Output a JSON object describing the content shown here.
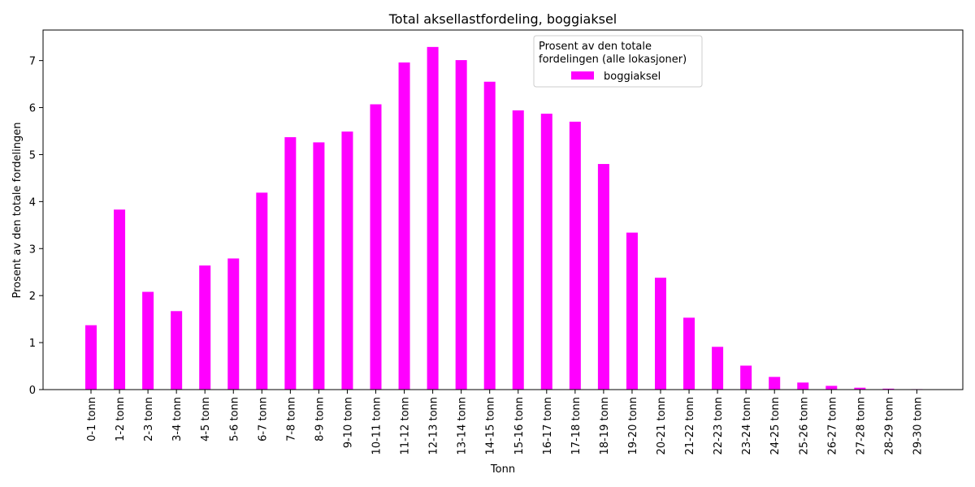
{
  "chart_data": {
    "type": "bar",
    "title": "Total aksellastfordeling, boggiaksel",
    "xlabel": "Tonn",
    "ylabel": "Prosent av den totale fordelingen",
    "ylim": [
      0,
      7.65
    ],
    "yticks": [
      0,
      1,
      2,
      3,
      4,
      5,
      6,
      7
    ],
    "grid": false,
    "legend": {
      "title_line1": "Prosent av den totale",
      "title_line2": "fordelingen (alle lokasjoner)",
      "placement": "top-center"
    },
    "categories": [
      "0-1 tonn",
      "1-2 tonn",
      "2-3 tonn",
      "3-4 tonn",
      "4-5 tonn",
      "5-6 tonn",
      "6-7 tonn",
      "7-8 tonn",
      "8-9 tonn",
      "9-10 tonn",
      "10-11 tonn",
      "11-12 tonn",
      "12-13 tonn",
      "13-14 tonn",
      "14-15 tonn",
      "15-16 tonn",
      "16-17 tonn",
      "17-18 tonn",
      "18-19 tonn",
      "19-20 tonn",
      "20-21 tonn",
      "21-22 tonn",
      "22-23 tonn",
      "23-24 tonn",
      "24-25 tonn",
      "25-26 tonn",
      "26-27 tonn",
      "27-28 tonn",
      "28-29 tonn",
      "29-30 tonn"
    ],
    "series": [
      {
        "name": "boggiaksel",
        "color": "#ff00ff",
        "values": [
          1.37,
          3.83,
          2.08,
          1.67,
          2.64,
          2.79,
          4.19,
          5.37,
          5.26,
          5.49,
          6.07,
          6.96,
          7.29,
          7.01,
          6.55,
          5.94,
          5.87,
          5.7,
          4.8,
          3.34,
          2.38,
          1.53,
          0.91,
          0.51,
          0.27,
          0.15,
          0.08,
          0.04,
          0.02,
          0.01
        ]
      }
    ]
  }
}
